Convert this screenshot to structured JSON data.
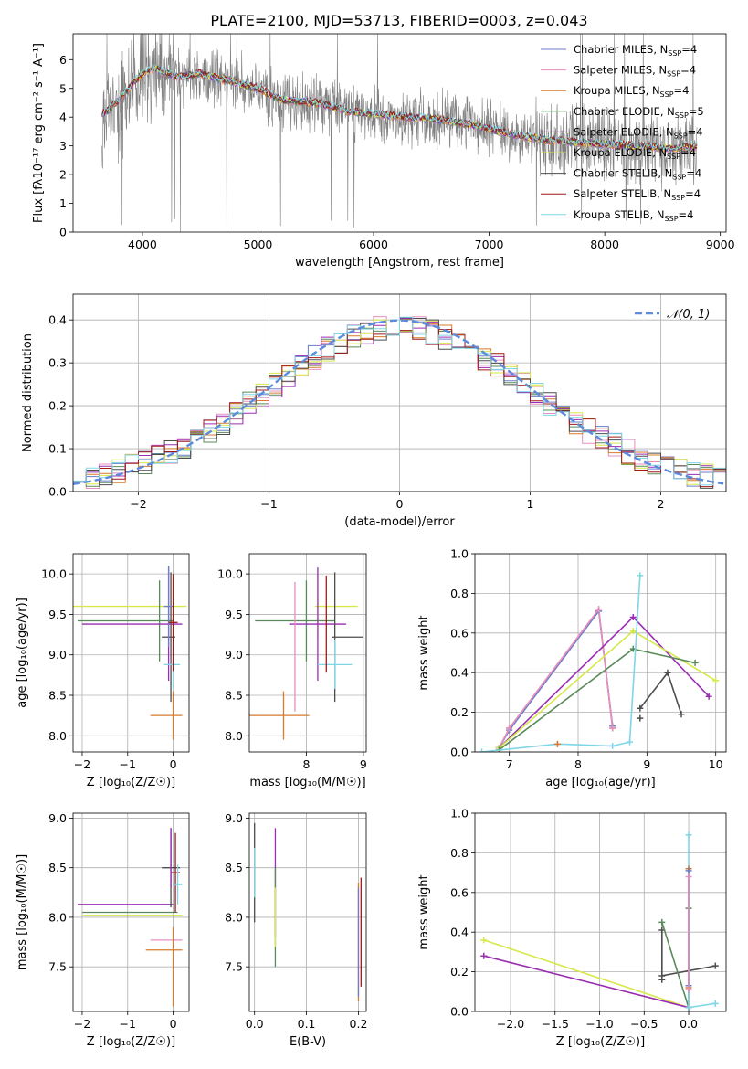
{
  "figure": {
    "title": "PLATE=2100, MJD=53713, FIBERID=0003, z=0.043"
  },
  "legend_entries": [
    {
      "model": "Chabrier MILES",
      "n": "4",
      "color": "#6a7ec9"
    },
    {
      "model": "Salpeter MILES",
      "n": "4",
      "color": "#e58fc0"
    },
    {
      "model": "Kroupa MILES",
      "n": "4",
      "color": "#d87a2a"
    },
    {
      "model": "Chabrier ELODIE",
      "n": "5",
      "color": "#5a8a5a"
    },
    {
      "model": "Salpeter ELODIE",
      "n": "4",
      "color": "#9a2db3"
    },
    {
      "model": "Kroupa ELODIE",
      "n": "4",
      "color": "#d7e84a"
    },
    {
      "model": "Chabrier STELIB",
      "n": "4",
      "color": "#4d4d4d"
    },
    {
      "model": "Salpeter STELIB",
      "n": "4",
      "color": "#a01818"
    },
    {
      "model": "Kroupa STELIB",
      "n": "4",
      "color": "#7fd6e6"
    }
  ],
  "legend_nssp_prefix": "N",
  "legend_nssp_sub": "SSP",
  "chart_data": [
    {
      "id": "spectrum",
      "type": "line",
      "xlabel": "wavelength [Angstrom, rest frame]",
      "ylabel": "Flux [fλ10⁻¹⁷ erg cm⁻² s⁻¹ A⁻¹]",
      "xlim": [
        3400,
        9050
      ],
      "ylim": [
        0,
        6.9
      ],
      "xticks": [
        4000,
        5000,
        6000,
        7000,
        8000,
        9000
      ],
      "yticks": [
        0,
        1,
        2,
        3,
        4,
        5,
        6
      ],
      "grid": false,
      "legend": "top-right",
      "data_color": "#7f7f7f",
      "continuum_x": [
        3650,
        3800,
        3900,
        4000,
        4100,
        4300,
        4500,
        4800,
        5000,
        5200,
        5500,
        5800,
        6000,
        6300,
        6600,
        6900,
        7200,
        7500,
        7800,
        8100,
        8400,
        8600,
        8800
      ],
      "continuum_y": [
        4.1,
        4.6,
        5.1,
        5.5,
        5.7,
        5.4,
        5.5,
        5.2,
        5.0,
        4.6,
        4.5,
        4.2,
        4.1,
        4.0,
        3.9,
        3.7,
        3.4,
        3.2,
        3.1,
        3.05,
        2.95,
        2.9,
        3.0
      ]
    },
    {
      "id": "residuals",
      "type": "area",
      "xlabel": "(data-model)/error",
      "ylabel": "Normed distribution",
      "xlim": [
        -2.5,
        2.5
      ],
      "ylim": [
        0,
        0.46
      ],
      "xticks": [
        -2,
        -1,
        0,
        1,
        2
      ],
      "yticks": [
        0.0,
        0.1,
        0.2,
        0.3,
        0.4
      ],
      "grid": true,
      "legend": "top-right",
      "gaussian_label": "𝒩(0, 1)",
      "gaussian_color": "#5b8bdc"
    },
    {
      "id": "age_vs_Z",
      "type": "scatter",
      "xlabel": "Z [log₁₀(Z/Z☉)]",
      "ylabel": "age  [log₁₀(age/yr)]",
      "xlim": [
        -2.2,
        0.35
      ],
      "ylim": [
        7.8,
        10.25
      ],
      "xticks": [
        -2,
        -1,
        0
      ],
      "yticks": [
        8.0,
        8.5,
        9.0,
        9.5,
        10.0
      ],
      "grid": true,
      "errorbars": [
        {
          "s": 5,
          "x": 0.0,
          "y": 9.6,
          "xerr": [
            2.3,
            0.3
          ],
          "yerr": [
            0.4,
            0.4
          ]
        },
        {
          "s": 3,
          "x": -0.3,
          "y": 9.42,
          "xerr": [
            1.8,
            0.3
          ],
          "yerr": [
            0.5,
            0.5
          ]
        },
        {
          "s": 4,
          "x": -0.1,
          "y": 9.38,
          "xerr": [
            1.9,
            0.3
          ],
          "yerr": [
            0.7,
            0.7
          ]
        },
        {
          "s": 6,
          "x": -0.05,
          "y": 9.22,
          "xerr": [
            0.2,
            0.1
          ],
          "yerr": [
            0.8,
            0.8
          ]
        },
        {
          "s": 8,
          "x": 0.0,
          "y": 8.88,
          "xerr": [
            0.2,
            0.15
          ],
          "yerr": [
            0.3,
            0.3
          ]
        },
        {
          "s": 2,
          "x": 0.0,
          "y": 8.25,
          "xerr": [
            0.5,
            0.2
          ],
          "yerr": [
            0.3,
            0.3
          ]
        },
        {
          "s": 0,
          "x": -0.1,
          "y": 9.6,
          "xerr": [
            0.1,
            0.1
          ],
          "yerr": [
            0.5,
            0.5
          ]
        },
        {
          "s": 7,
          "x": 0.0,
          "y": 9.4,
          "xerr": [
            0.1,
            0.1
          ],
          "yerr": [
            0.6,
            0.6
          ]
        }
      ]
    },
    {
      "id": "age_vs_mass",
      "type": "scatter",
      "xlabel": "mass [log₁₀(M/M☉)]",
      "ylabel": "",
      "xlim": [
        7.0,
        9.05
      ],
      "ylim": [
        7.8,
        10.25
      ],
      "xticks": [
        8,
        9
      ],
      "yticks": [
        8.0,
        8.5,
        9.0,
        9.5,
        10.0
      ],
      "grid": true,
      "errorbars": [
        {
          "s": 5,
          "x": 8.2,
          "y": 9.6,
          "xerr": [
            0.05,
            0.7
          ],
          "yerr": [
            0.4,
            0.4
          ]
        },
        {
          "s": 3,
          "x": 8.0,
          "y": 9.42,
          "xerr": [
            0.9,
            0.5
          ],
          "yerr": [
            0.5,
            0.5
          ]
        },
        {
          "s": 4,
          "x": 8.2,
          "y": 9.38,
          "xerr": [
            0.5,
            0.5
          ],
          "yerr": [
            0.7,
            0.7
          ]
        },
        {
          "s": 6,
          "x": 8.5,
          "y": 9.22,
          "xerr": [
            0.05,
            0.5
          ],
          "yerr": [
            0.8,
            0.8
          ]
        },
        {
          "s": 8,
          "x": 8.5,
          "y": 8.88,
          "xerr": [
            0.3,
            0.3
          ],
          "yerr": [
            0.3,
            0.3
          ]
        },
        {
          "s": 2,
          "x": 7.6,
          "y": 8.25,
          "xerr": [
            0.6,
            0.45
          ],
          "yerr": [
            0.3,
            0.3
          ]
        },
        {
          "s": 1,
          "x": 7.8,
          "y": 9.1,
          "xerr": [
            0.0,
            0.0
          ],
          "yerr": [
            0.8,
            0.8
          ]
        },
        {
          "s": 7,
          "x": 8.35,
          "y": 9.38,
          "xerr": [
            0.0,
            0.0
          ],
          "yerr": [
            0.6,
            0.6
          ]
        }
      ]
    },
    {
      "id": "weight_vs_age",
      "type": "line",
      "xlabel": "age  [log₁₀(age/yr)]",
      "ylabel": "mass weight",
      "xlim": [
        6.5,
        10.15
      ],
      "ylim": [
        0,
        1.0
      ],
      "xticks": [
        7,
        8,
        9,
        10
      ],
      "yticks": [
        0.0,
        0.2,
        0.4,
        0.6,
        0.8,
        1.0
      ],
      "grid": true,
      "series": [
        {
          "s": 2,
          "x": [
            6.85,
            7.0,
            8.3,
            8.5
          ],
          "y": [
            0.02,
            0.12,
            0.72,
            0.12
          ]
        },
        {
          "s": 0,
          "x": [
            6.85,
            7.0,
            8.3,
            8.5
          ],
          "y": [
            0.02,
            0.11,
            0.71,
            0.13
          ]
        },
        {
          "s": 1,
          "x": [
            6.85,
            7.0,
            8.3,
            8.5
          ],
          "y": [
            0.02,
            0.12,
            0.72,
            0.12
          ]
        },
        {
          "s": 4,
          "x": [
            6.85,
            8.8,
            9.9
          ],
          "y": [
            0.02,
            0.68,
            0.28
          ]
        },
        {
          "s": 5,
          "x": [
            6.85,
            8.8,
            10.0
          ],
          "y": [
            0.02,
            0.61,
            0.36
          ]
        },
        {
          "s": 3,
          "x": [
            6.85,
            8.8,
            9.7
          ],
          "y": [
            0.01,
            0.52,
            0.45
          ]
        },
        {
          "s": 6,
          "x": [
            8.9,
            9.3,
            9.5
          ],
          "y": [
            0.22,
            0.4,
            0.19
          ]
        },
        {
          "s": 8,
          "x": [
            6.6,
            7.7,
            8.5,
            8.75,
            8.9
          ],
          "y": [
            0.0,
            0.04,
            0.03,
            0.05,
            0.89
          ]
        }
      ],
      "extra_marks": [
        {
          "s": 6,
          "x": 8.9,
          "y": 0.17
        },
        {
          "s": 2,
          "x": 7.7,
          "y": 0.04
        }
      ]
    },
    {
      "id": "mass_vs_Z",
      "type": "scatter",
      "xlabel": "Z [log₁₀(Z/Z☉)]",
      "ylabel": "mass [log₁₀(M/M☉)]",
      "xlim": [
        -2.2,
        0.35
      ],
      "ylim": [
        7.05,
        9.05
      ],
      "xticks": [
        -2,
        -1,
        0
      ],
      "yticks": [
        7.5,
        8.0,
        8.5,
        9.0
      ],
      "grid": true,
      "errorbars": [
        {
          "s": 4,
          "x": -0.6,
          "y": 8.13,
          "xerr": [
            1.5,
            0.6
          ],
          "yerr": [
            0.0,
            0.0
          ]
        },
        {
          "s": 5,
          "x": -1.0,
          "y": 8.02,
          "xerr": [
            1.0,
            1.2
          ],
          "yerr": [
            0.0,
            0.0
          ]
        },
        {
          "s": 3,
          "x": -1.0,
          "y": 8.05,
          "xerr": [
            1.0,
            1.1
          ],
          "yerr": [
            0.0,
            0.0
          ]
        },
        {
          "s": 1,
          "x": -0.2,
          "y": 7.77,
          "xerr": [
            0.3,
            0.4
          ],
          "yerr": [
            0.0,
            0.0
          ]
        },
        {
          "s": 2,
          "x": -0.3,
          "y": 7.67,
          "xerr": [
            0.3,
            0.5
          ],
          "yerr": [
            0.0,
            0.0
          ]
        },
        {
          "s": 6,
          "x": -0.05,
          "y": 8.5,
          "xerr": [
            0.2,
            0.2
          ],
          "yerr": [
            0.4,
            0.4
          ]
        },
        {
          "s": 7,
          "x": 0.05,
          "y": 8.45,
          "xerr": [
            0.1,
            0.1
          ],
          "yerr": [
            0.4,
            0.4
          ]
        },
        {
          "s": 8,
          "x": 0.1,
          "y": 8.33,
          "xerr": [
            0.1,
            0.1
          ],
          "yerr": [
            0.2,
            0.2
          ]
        },
        {
          "s": 4,
          "x": -0.05,
          "y": 8.6,
          "xerr": [
            0.0,
            0.0
          ],
          "yerr": [
            0.3,
            0.3
          ]
        },
        {
          "s": 2,
          "x": 0.0,
          "y": 7.5,
          "xerr": [
            0.0,
            0.0
          ],
          "yerr": [
            0.4,
            0.4
          ]
        }
      ]
    },
    {
      "id": "mass_vs_ebv",
      "type": "scatter",
      "xlabel": "E(B-V)",
      "ylabel": "",
      "xlim": [
        -0.01,
        0.215
      ],
      "ylim": [
        7.05,
        9.05
      ],
      "xticks": [
        0.0,
        0.1,
        0.2
      ],
      "yticks": [
        7.5,
        8.0,
        8.5,
        9.0
      ],
      "grid": true,
      "errorbars": [
        {
          "s": 6,
          "x": 0.0,
          "y": 8.45,
          "xerr": [
            0.0,
            0.0
          ],
          "yerr": [
            0.5,
            0.5
          ]
        },
        {
          "s": 8,
          "x": 0.0,
          "y": 8.45,
          "xerr": [
            0.0,
            0.0
          ],
          "yerr": [
            0.25,
            0.25
          ]
        },
        {
          "s": 4,
          "x": 0.04,
          "y": 8.35,
          "xerr": [
            0.0,
            0.0
          ],
          "yerr": [
            0.55,
            0.55
          ]
        },
        {
          "s": 3,
          "x": 0.04,
          "y": 8.0,
          "xerr": [
            0.0,
            0.0
          ],
          "yerr": [
            0.5,
            0.5
          ]
        },
        {
          "s": 5,
          "x": 0.04,
          "y": 8.0,
          "xerr": [
            0.0,
            0.0
          ],
          "yerr": [
            0.3,
            0.3
          ]
        },
        {
          "s": 2,
          "x": 0.2,
          "y": 7.75,
          "xerr": [
            0.0,
            0.0
          ],
          "yerr": [
            0.6,
            0.6
          ]
        },
        {
          "s": 0,
          "x": 0.2,
          "y": 7.75,
          "xerr": [
            0.0,
            0.0
          ],
          "yerr": [
            0.55,
            0.55
          ]
        },
        {
          "s": 7,
          "x": 0.205,
          "y": 7.85,
          "xerr": [
            0.0,
            0.0
          ],
          "yerr": [
            0.55,
            0.55
          ]
        }
      ]
    },
    {
      "id": "weight_vs_Z",
      "type": "line",
      "xlabel": "Z [log₁₀(Z/Z☉)]",
      "ylabel": "mass weight",
      "xlim": [
        -2.4,
        0.42
      ],
      "ylim": [
        0,
        1.0
      ],
      "xticks": [
        -2.0,
        -1.5,
        -1.0,
        -0.5,
        0.0
      ],
      "yticks": [
        0.0,
        0.2,
        0.4,
        0.6,
        0.8,
        1.0
      ],
      "grid": true,
      "series": [
        {
          "s": 5,
          "x": [
            -2.3,
            0.0
          ],
          "y": [
            0.36,
            0.02
          ]
        },
        {
          "s": 4,
          "x": [
            -2.3,
            0.0
          ],
          "y": [
            0.28,
            0.02
          ]
        },
        {
          "s": 6,
          "x": [
            -0.3,
            -0.3,
            0.3
          ],
          "y": [
            0.41,
            0.18,
            0.23
          ]
        },
        {
          "s": 3,
          "x": [
            -0.3,
            0.0,
            0.0
          ],
          "y": [
            0.45,
            0.02,
            0.52
          ]
        },
        {
          "s": 8,
          "x": [
            0.0,
            0.0,
            0.3
          ],
          "y": [
            0.89,
            0.02,
            0.04
          ]
        },
        {
          "s": 2,
          "x": [
            0.0,
            0.0
          ],
          "y": [
            0.72,
            0.12
          ]
        },
        {
          "s": 0,
          "x": [
            0.0,
            0.0
          ],
          "y": [
            0.71,
            0.13
          ]
        },
        {
          "s": 1,
          "x": [
            0.0,
            0.0
          ],
          "y": [
            0.68,
            0.11
          ]
        }
      ],
      "extra_marks": [
        {
          "s": 6,
          "x": -0.3,
          "y": 0.16
        }
      ]
    }
  ]
}
